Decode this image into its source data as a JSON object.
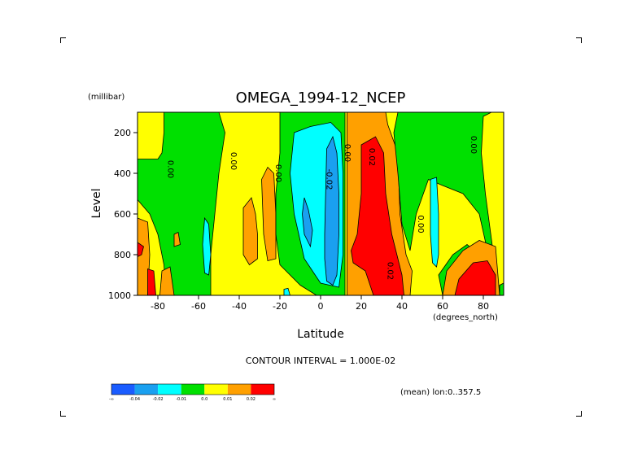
{
  "chart_data": {
    "type": "heatmap",
    "title": "OMEGA_1994-12_NCEP",
    "xlabel": "Latitude",
    "ylabel": "Level",
    "x_units": "(degrees_north)",
    "y_units": "(millibar)",
    "xlim": [
      -90,
      90
    ],
    "ylim": [
      1000,
      100
    ],
    "x_ticks": [
      -80,
      -60,
      -40,
      -20,
      0,
      20,
      40,
      60,
      80
    ],
    "x_tick_labels": [
      "-80",
      "-60",
      "-40",
      "-20",
      "0",
      "20",
      "40",
      "60",
      "80"
    ],
    "y_ticks": [
      200,
      400,
      600,
      800,
      1000
    ],
    "y_tick_labels": [
      "200",
      "400",
      "600",
      "800",
      "1000"
    ],
    "contour_interval_text": "CONTOUR INTERVAL = 1.000E-02",
    "mean_text": "(mean) lon:0..357.5",
    "colorbar": {
      "colors": [
        "#1a5cff",
        "#1aa0f0",
        "#00ffff",
        "#00e000",
        "#ffff00",
        "#ffa000",
        "#ff0000"
      ],
      "tick_labels": [
        "-∞",
        "-0.04",
        "-0.02",
        "-0.01",
        "0.0",
        "0.01",
        "0.02",
        "∞"
      ]
    },
    "contour_labels": [
      {
        "text": "0.00",
        "lat": -75,
        "lev": 380,
        "rotate": 90
      },
      {
        "text": "0.00",
        "lat": -44,
        "lev": 340,
        "rotate": 90
      },
      {
        "text": "0.00",
        "lat": -22,
        "lev": 400,
        "rotate": 90
      },
      {
        "text": "-0.02",
        "lat": 3,
        "lev": 430,
        "rotate": 90
      },
      {
        "text": "0.00",
        "lat": 12,
        "lev": 300,
        "rotate": 90
      },
      {
        "text": "0.02",
        "lat": 24,
        "lev": 320,
        "rotate": 90
      },
      {
        "text": "0.00",
        "lat": 48,
        "lev": 650,
        "rotate": 90
      },
      {
        "text": "0.02",
        "lat": 33,
        "lev": 880,
        "rotate": 90
      },
      {
        "text": "0.00",
        "lat": 74,
        "lev": 260,
        "rotate": 90
      }
    ],
    "regions": [
      {
        "level": "0.0",
        "color": "#ffff00",
        "pts": [
          [
            -90,
            100
          ],
          [
            90,
            100
          ],
          [
            90,
            1000
          ],
          [
            -90,
            1000
          ]
        ]
      },
      {
        "level": "-0.01",
        "color": "#00e000",
        "pts": [
          [
            -77,
            100
          ],
          [
            -50,
            100
          ],
          [
            -47,
            200
          ],
          [
            -50,
            400
          ],
          [
            -52,
            600
          ],
          [
            -54,
            800
          ],
          [
            -54,
            1000
          ],
          [
            -76,
            1000
          ],
          [
            -77,
            850
          ],
          [
            -80,
            700
          ],
          [
            -84,
            600
          ],
          [
            -90,
            530
          ],
          [
            -90,
            330
          ],
          [
            -80,
            330
          ],
          [
            -78,
            300
          ],
          [
            -77,
            200
          ]
        ]
      },
      {
        "level": "0.01",
        "color": "#ffa000",
        "pts": [
          [
            -90,
            620
          ],
          [
            -85,
            640
          ],
          [
            -84,
            800
          ],
          [
            -85,
            1000
          ],
          [
            -90,
            1000
          ]
        ]
      },
      {
        "level": "0.02",
        "color": "#ff0000",
        "pts": [
          [
            -90,
            740
          ],
          [
            -87,
            760
          ],
          [
            -88,
            800
          ],
          [
            -90,
            810
          ]
        ]
      },
      {
        "level": "0.02",
        "color": "#ff0000",
        "pts": [
          [
            -85,
            870
          ],
          [
            -82,
            880
          ],
          [
            -81,
            1000
          ],
          [
            -85,
            1000
          ]
        ]
      },
      {
        "level": "0.01",
        "color": "#ffa000",
        "pts": [
          [
            -78,
            880
          ],
          [
            -74,
            860
          ],
          [
            -72,
            1000
          ],
          [
            -79,
            1000
          ]
        ]
      },
      {
        "level": "0.01",
        "color": "#ffa000",
        "pts": [
          [
            -72,
            700
          ],
          [
            -70,
            690
          ],
          [
            -69,
            750
          ],
          [
            -72,
            760
          ]
        ]
      },
      {
        "level": "-0.02",
        "color": "#00ffff",
        "pts": [
          [
            -57,
            620
          ],
          [
            -55,
            650
          ],
          [
            -54,
            800
          ],
          [
            -55,
            900
          ],
          [
            -57,
            890
          ],
          [
            -58,
            750
          ]
        ]
      },
      {
        "level": "0.01",
        "color": "#ffa000",
        "pts": [
          [
            -38,
            570
          ],
          [
            -34,
            520
          ],
          [
            -32,
            600
          ],
          [
            -31,
            700
          ],
          [
            -31,
            820
          ],
          [
            -35,
            850
          ],
          [
            -38,
            800
          ]
        ]
      },
      {
        "level": "0.01",
        "color": "#ffa000",
        "pts": [
          [
            -29,
            430
          ],
          [
            -26,
            370
          ],
          [
            -23,
            400
          ],
          [
            -22,
            600
          ],
          [
            -22,
            820
          ],
          [
            -26,
            830
          ],
          [
            -28,
            700
          ]
        ]
      },
      {
        "level": "-0.01",
        "color": "#00e000",
        "pts": [
          [
            -20,
            100
          ],
          [
            12,
            100
          ],
          [
            12,
            1000
          ],
          [
            -2,
            1000
          ],
          [
            -10,
            950
          ],
          [
            -20,
            850
          ],
          [
            -22,
            700
          ],
          [
            -22,
            500
          ],
          [
            -20,
            300
          ]
        ]
      },
      {
        "level": "-0.02",
        "color": "#00ffff",
        "pts": [
          [
            -13,
            200
          ],
          [
            -5,
            170
          ],
          [
            5,
            150
          ],
          [
            10,
            200
          ],
          [
            11,
            400
          ],
          [
            11,
            800
          ],
          [
            9,
            960
          ],
          [
            0,
            940
          ],
          [
            -8,
            820
          ],
          [
            -13,
            600
          ],
          [
            -15,
            400
          ]
        ]
      },
      {
        "level": "-0.04",
        "color": "#1aa0f0",
        "pts": [
          [
            -8,
            520
          ],
          [
            -6,
            580
          ],
          [
            -4,
            680
          ],
          [
            -5,
            760
          ],
          [
            -8,
            700
          ],
          [
            -9,
            600
          ]
        ]
      },
      {
        "level": "-0.04",
        "color": "#1aa0f0",
        "pts": [
          [
            2,
            700
          ],
          [
            3,
            280
          ],
          [
            6,
            220
          ],
          [
            8,
            300
          ],
          [
            9,
            500
          ],
          [
            9,
            700
          ],
          [
            8,
            900
          ],
          [
            6,
            950
          ],
          [
            3,
            930
          ],
          [
            2,
            820
          ]
        ]
      },
      {
        "level": "-0.02",
        "color": "#00ffff",
        "pts": [
          [
            -18,
            970
          ],
          [
            -16,
            965
          ],
          [
            -15,
            1000
          ],
          [
            -18,
            1000
          ]
        ]
      },
      {
        "level": "0.01",
        "color": "#ffa000",
        "pts": [
          [
            13,
            100
          ],
          [
            32,
            100
          ],
          [
            33,
            160
          ],
          [
            38,
            300
          ],
          [
            39,
            600
          ],
          [
            42,
            800
          ],
          [
            45,
            880
          ],
          [
            44,
            1000
          ],
          [
            13,
            1000
          ],
          [
            13,
            400
          ]
        ]
      },
      {
        "level": "0.02",
        "color": "#ff0000",
        "pts": [
          [
            20,
            260
          ],
          [
            27,
            220
          ],
          [
            31,
            300
          ],
          [
            32,
            500
          ],
          [
            35,
            700
          ],
          [
            40,
            900
          ],
          [
            41,
            1000
          ],
          [
            26,
            1000
          ],
          [
            22,
            880
          ],
          [
            16,
            840
          ],
          [
            15,
            780
          ],
          [
            18,
            700
          ],
          [
            20,
            500
          ]
        ]
      },
      {
        "level": "-0.01",
        "color": "#00e000",
        "pts": [
          [
            38,
            100
          ],
          [
            90,
            100
          ],
          [
            90,
            1000
          ],
          [
            60,
            1000
          ],
          [
            58,
            900
          ],
          [
            65,
            800
          ],
          [
            72,
            750
          ],
          [
            78,
            800
          ],
          [
            82,
            780
          ],
          [
            78,
            600
          ],
          [
            70,
            500
          ],
          [
            60,
            460
          ],
          [
            53,
            430
          ],
          [
            47,
            600
          ],
          [
            44,
            780
          ],
          [
            40,
            650
          ],
          [
            38,
            400
          ],
          [
            36,
            200
          ]
        ]
      },
      {
        "level": "0.0",
        "color": "#ffff00",
        "pts": [
          [
            80,
            120
          ],
          [
            84,
            100
          ],
          [
            90,
            100
          ],
          [
            90,
            1000
          ],
          [
            88,
            1000
          ],
          [
            85,
            800
          ],
          [
            81,
            500
          ],
          [
            79,
            300
          ]
        ]
      },
      {
        "level": "-0.02",
        "color": "#00ffff",
        "pts": [
          [
            54,
            430
          ],
          [
            57,
            420
          ],
          [
            58,
            600
          ],
          [
            58,
            800
          ],
          [
            57,
            860
          ],
          [
            55,
            840
          ],
          [
            54,
            700
          ]
        ]
      },
      {
        "level": "0.01",
        "color": "#ffa000",
        "pts": [
          [
            60,
            1000
          ],
          [
            62,
            880
          ],
          [
            70,
            780
          ],
          [
            78,
            730
          ],
          [
            86,
            760
          ],
          [
            88,
            1000
          ]
        ]
      },
      {
        "level": "0.02",
        "color": "#ff0000",
        "pts": [
          [
            66,
            1000
          ],
          [
            68,
            920
          ],
          [
            75,
            840
          ],
          [
            82,
            830
          ],
          [
            86,
            900
          ],
          [
            86,
            1000
          ]
        ]
      },
      {
        "level": "-0.01",
        "color": "#00e000",
        "pts": [
          [
            88,
            950
          ],
          [
            90,
            940
          ],
          [
            90,
            1000
          ],
          [
            88,
            1000
          ]
        ]
      }
    ]
  }
}
